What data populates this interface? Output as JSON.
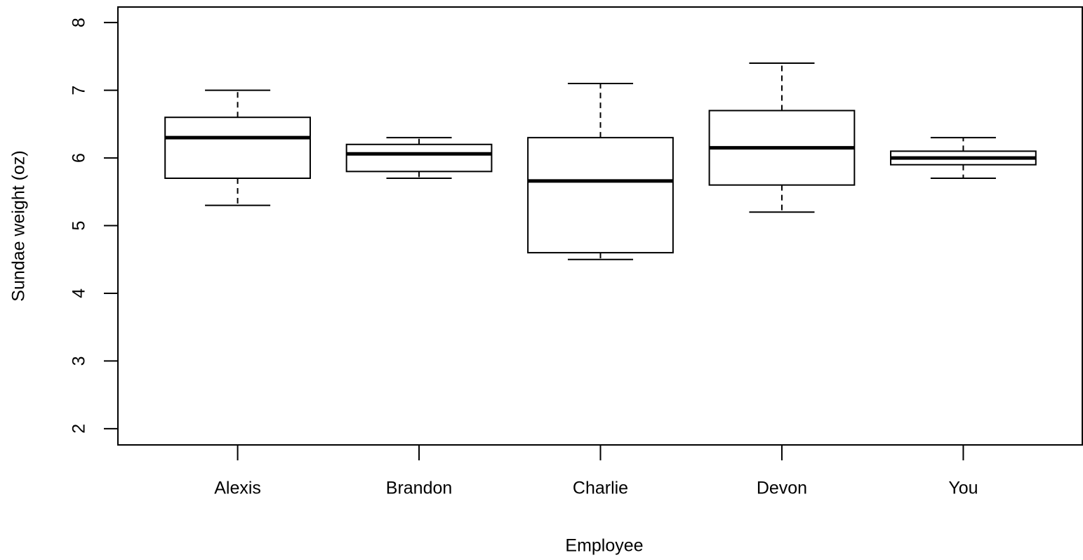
{
  "chart_data": {
    "type": "box",
    "x_label": "Employee",
    "y_label": "Sundae weight (oz)",
    "categories": [
      "Alexis",
      "Brandon",
      "Charlie",
      "Devon",
      "You"
    ],
    "min": [
      5.3,
      5.7,
      4.5,
      5.2,
      5.7
    ],
    "q1": [
      5.7,
      5.8,
      4.6,
      5.6,
      5.9
    ],
    "median": [
      6.3,
      6.06,
      5.66,
      6.15,
      6.0
    ],
    "q3": [
      6.6,
      6.2,
      6.3,
      6.7,
      6.1
    ],
    "max": [
      7.0,
      6.3,
      7.1,
      7.4,
      6.3
    ],
    "color": "#000000",
    "ylim": [
      1.76,
      8.23
    ],
    "yticks": [
      2,
      3,
      4,
      5,
      6,
      7,
      8
    ]
  }
}
